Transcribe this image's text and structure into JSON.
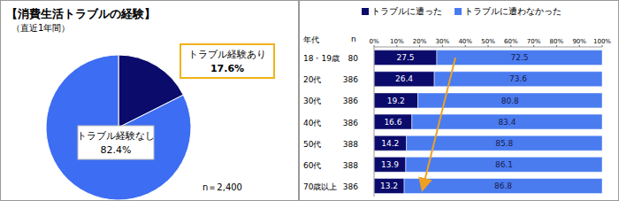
{
  "chart_data": [
    {
      "type": "pie",
      "title": "【消費生活トラブルの経験】",
      "subtitle": "（直近1年間）",
      "categories": [
        "トラブル経験あり",
        "トラブル経験なし"
      ],
      "values": [
        17.6,
        82.4
      ],
      "value_labels": [
        "17.6%",
        "82.4%"
      ],
      "colors": [
        "#0b0b6b",
        "#3d6df2"
      ],
      "data_labels": true,
      "annotation": "n＝2,400"
    },
    {
      "type": "bar",
      "orientation": "horizontal",
      "stacked": true,
      "data_labels": true,
      "column_headers": [
        "年代",
        "n"
      ],
      "categories": [
        "18・19歳",
        "20代",
        "30代",
        "40代",
        "50代",
        "60代",
        "70歳以上"
      ],
      "n": [
        80,
        386,
        386,
        386,
        388,
        388,
        386
      ],
      "series": [
        {
          "name": "トラブルに遭った",
          "color": "#0b0b6b",
          "values": [
            27.5,
            26.4,
            19.2,
            16.6,
            14.2,
            13.9,
            13.2
          ]
        },
        {
          "name": "トラブルに遭わなかった",
          "color": "#4a7cf0",
          "values": [
            72.5,
            73.6,
            80.8,
            83.4,
            85.8,
            86.1,
            86.8
          ]
        }
      ],
      "xlim": [
        0,
        100
      ],
      "xticks": [
        {
          "value": 0,
          "label": "0%"
        },
        {
          "value": 10,
          "label": "10%"
        },
        {
          "value": 20,
          "label": "20%"
        },
        {
          "value": 30,
          "label": "30%"
        },
        {
          "value": 40,
          "label": "40%"
        },
        {
          "value": 50,
          "label": "50%"
        },
        {
          "value": 60,
          "label": "60%"
        },
        {
          "value": 70,
          "label": "70%"
        },
        {
          "value": 80,
          "label": "80%"
        },
        {
          "value": 90,
          "label": "90%"
        },
        {
          "value": 100,
          "label": "100%"
        }
      ]
    }
  ]
}
